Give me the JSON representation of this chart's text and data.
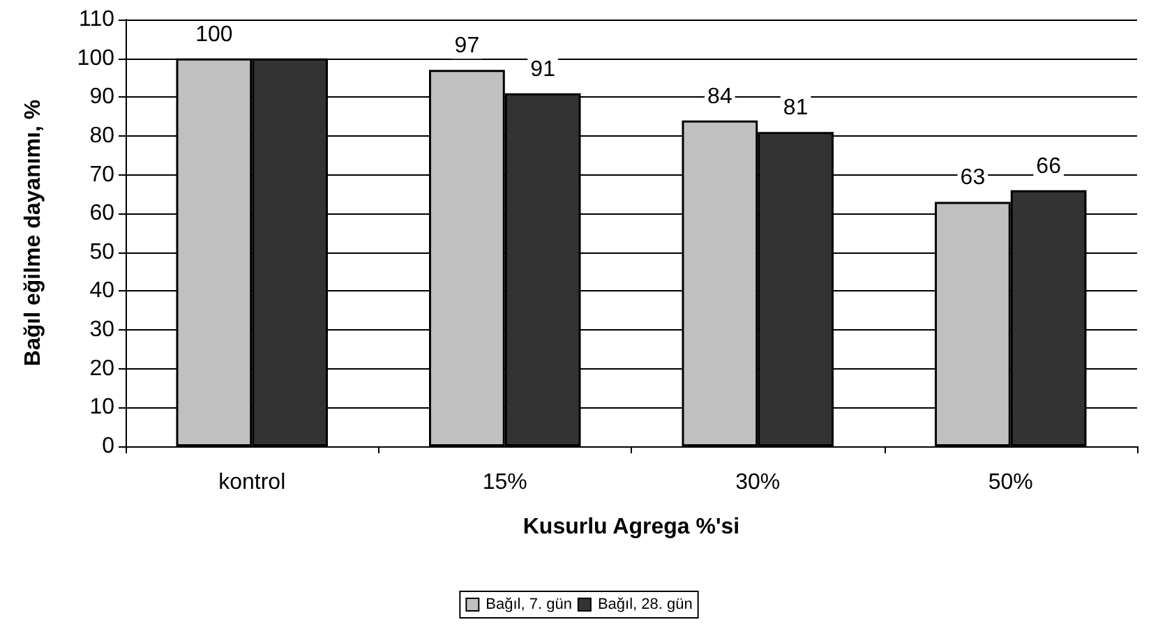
{
  "chart_data": {
    "type": "bar",
    "xlabel": "Kusurlu Agrega %'si",
    "ylabel": "Bağıl eğilme dayanımı, %",
    "categories": [
      "kontrol",
      "15%",
      "30%",
      "50%"
    ],
    "series": [
      {
        "name": "Bağıl, 7. gün",
        "color": "#c0c0c0",
        "values": [
          100,
          97,
          84,
          63
        ],
        "value_labels": [
          "100",
          "97",
          "84",
          "63"
        ]
      },
      {
        "name": "Bağıl, 28. gün",
        "color": "#333333",
        "values": [
          100,
          91,
          81,
          66
        ],
        "value_labels": [
          null,
          "91",
          "81",
          "66"
        ]
      }
    ],
    "ylim": [
      0,
      110
    ],
    "yticks": [
      0,
      10,
      20,
      30,
      40,
      50,
      60,
      70,
      80,
      90,
      100,
      110
    ],
    "grid": "y",
    "legend": "bottom"
  }
}
